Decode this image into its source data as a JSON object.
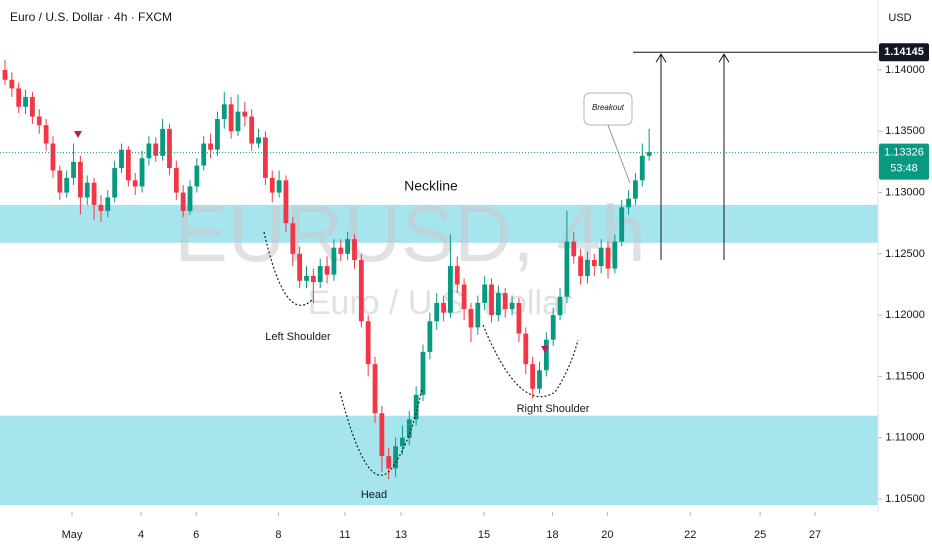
{
  "chart_data": {
    "type": "candlestick",
    "title": "Euro / U.S. Dollar · 4h · FXCM",
    "currency": "USD",
    "watermark": "EURUSD, 4h",
    "watermark_sub": "Euro / U.S. Dollar",
    "annotations": {
      "neckline": "Neckline",
      "left": "Left Shoulder",
      "head": "Head",
      "right": "Right Shoulder",
      "breakout": "Breakout"
    },
    "x": [
      0,
      1,
      2,
      3,
      4,
      5,
      6,
      7,
      8,
      9,
      10,
      11,
      12,
      13,
      14,
      15,
      16,
      17,
      18,
      19,
      20,
      21,
      22,
      23,
      24,
      25,
      26,
      27,
      28,
      29,
      30,
      31,
      32,
      33,
      34,
      35,
      36,
      37,
      38,
      39,
      40,
      41,
      42,
      43,
      44,
      45,
      46,
      47,
      48,
      49,
      50,
      51,
      52,
      53,
      54,
      55,
      56,
      57,
      58,
      59,
      60,
      61,
      62,
      63,
      64,
      65,
      66,
      67,
      68,
      69,
      70,
      71,
      72,
      73,
      74,
      75,
      76,
      77,
      78,
      79,
      80,
      81,
      82,
      83,
      84,
      85,
      86,
      87,
      88,
      89,
      90,
      91,
      92,
      93,
      94
    ],
    "open": [
      1.14,
      1.1392,
      1.1385,
      1.137,
      1.1378,
      1.1362,
      1.1355,
      1.134,
      1.1318,
      1.13,
      1.1312,
      1.1325,
      1.1296,
      1.1308,
      1.129,
      1.1285,
      1.1296,
      1.132,
      1.1335,
      1.131,
      1.1305,
      1.1328,
      1.134,
      1.133,
      1.1352,
      1.132,
      1.13,
      1.1285,
      1.1305,
      1.1322,
      1.134,
      1.1335,
      1.136,
      1.1372,
      1.135,
      1.1366,
      1.1362,
      1.134,
      1.1345,
      1.1312,
      1.13,
      1.131,
      1.1275,
      1.125,
      1.1228,
      1.1232,
      1.1227,
      1.124,
      1.1233,
      1.1255,
      1.125,
      1.1262,
      1.1245,
      1.1195,
      1.116,
      1.112,
      1.1085,
      1.1075,
      1.1093,
      1.11,
      1.1115,
      1.1135,
      1.117,
      1.1195,
      1.121,
      1.1202,
      1.124,
      1.1225,
      1.1205,
      1.119,
      1.121,
      1.1225,
      1.12,
      1.1218,
      1.1205,
      1.121,
      1.1185,
      1.116,
      1.114,
      1.1155,
      1.118,
      1.12,
      1.1215,
      1.126,
      1.1248,
      1.1232,
      1.1245,
      1.124,
      1.1255,
      1.1238,
      1.126,
      1.1288,
      1.1295,
      1.131,
      1.133
    ],
    "high": [
      1.1408,
      1.1398,
      1.139,
      1.1384,
      1.1382,
      1.1368,
      1.136,
      1.1346,
      1.1322,
      1.1318,
      1.134,
      1.133,
      1.1314,
      1.1312,
      1.1298,
      1.1302,
      1.1326,
      1.134,
      1.1338,
      1.1316,
      1.1334,
      1.1346,
      1.1345,
      1.136,
      1.1356,
      1.1326,
      1.1306,
      1.131,
      1.1328,
      1.1346,
      1.1348,
      1.1366,
      1.1382,
      1.1378,
      1.138,
      1.1374,
      1.1368,
      1.1352,
      1.135,
      1.1318,
      1.1318,
      1.1314,
      1.128,
      1.1256,
      1.124,
      1.1238,
      1.1246,
      1.1248,
      1.1262,
      1.1262,
      1.1268,
      1.1266,
      1.125,
      1.12,
      1.1166,
      1.1126,
      1.1092,
      1.11,
      1.111,
      1.1122,
      1.1142,
      1.1176,
      1.1202,
      1.1218,
      1.1216,
      1.1266,
      1.1248,
      1.123,
      1.121,
      1.1216,
      1.1232,
      1.123,
      1.1224,
      1.1222,
      1.1216,
      1.1214,
      1.119,
      1.1166,
      1.1162,
      1.1186,
      1.1206,
      1.1222,
      1.1285,
      1.1268,
      1.1254,
      1.1252,
      1.125,
      1.1262,
      1.126,
      1.1266,
      1.1294,
      1.1302,
      1.1316,
      1.134,
      1.1352
    ],
    "low": [
      1.1388,
      1.1378,
      1.1365,
      1.1364,
      1.1356,
      1.1348,
      1.1334,
      1.1312,
      1.1294,
      1.1296,
      1.1306,
      1.1282,
      1.129,
      1.1278,
      1.1276,
      1.128,
      1.1292,
      1.1316,
      1.1305,
      1.1298,
      1.13,
      1.1322,
      1.1325,
      1.1326,
      1.1314,
      1.1294,
      1.128,
      1.1282,
      1.13,
      1.1318,
      1.1328,
      1.133,
      1.1352,
      1.1344,
      1.1346,
      1.1354,
      1.1334,
      1.1336,
      1.1306,
      1.1292,
      1.1296,
      1.1268,
      1.124,
      1.1222,
      1.1222,
      1.121,
      1.1222,
      1.1226,
      1.1228,
      1.1244,
      1.1245,
      1.1238,
      1.119,
      1.115,
      1.1112,
      1.1072,
      1.1066,
      1.1068,
      1.1086,
      1.1094,
      1.111,
      1.113,
      1.1164,
      1.1188,
      1.1195,
      1.1198,
      1.1218,
      1.1196,
      1.1178,
      1.1184,
      1.1204,
      1.1194,
      1.1195,
      1.1198,
      1.12,
      1.1178,
      1.1152,
      1.1132,
      1.1136,
      1.115,
      1.1175,
      1.1196,
      1.121,
      1.1242,
      1.1225,
      1.1226,
      1.1232,
      1.1234,
      1.123,
      1.1234,
      1.1256,
      1.1282,
      1.129,
      1.1305,
      1.1326
    ],
    "close": [
      1.1392,
      1.1385,
      1.137,
      1.1378,
      1.1362,
      1.1355,
      1.134,
      1.1318,
      1.13,
      1.1312,
      1.1325,
      1.1296,
      1.1308,
      1.129,
      1.1285,
      1.1296,
      1.132,
      1.1335,
      1.131,
      1.1305,
      1.1328,
      1.134,
      1.133,
      1.1352,
      1.132,
      1.13,
      1.1285,
      1.1305,
      1.1322,
      1.134,
      1.1335,
      1.136,
      1.1372,
      1.135,
      1.1366,
      1.1362,
      1.134,
      1.1345,
      1.1312,
      1.13,
      1.131,
      1.1275,
      1.125,
      1.1228,
      1.1232,
      1.1227,
      1.124,
      1.1233,
      1.1255,
      1.125,
      1.1262,
      1.1245,
      1.1195,
      1.116,
      1.112,
      1.1085,
      1.1075,
      1.1093,
      1.11,
      1.1115,
      1.1135,
      1.117,
      1.1195,
      1.121,
      1.1202,
      1.124,
      1.1225,
      1.1205,
      1.119,
      1.121,
      1.1225,
      1.12,
      1.1218,
      1.1205,
      1.121,
      1.1185,
      1.116,
      1.114,
      1.1155,
      1.118,
      1.12,
      1.1215,
      1.126,
      1.1248,
      1.1232,
      1.1245,
      1.124,
      1.1255,
      1.1238,
      1.126,
      1.1288,
      1.1295,
      1.131,
      1.133,
      1.1333
    ],
    "up_color": "#089981",
    "down_color": "#f23645",
    "xlim": [
      -0.73,
      127.4
    ],
    "xticks": [
      {
        "value": 9.78,
        "label": "May"
      },
      {
        "value": 19.85,
        "label": "4"
      },
      {
        "value": 27.9,
        "label": "6"
      },
      {
        "value": 39.9,
        "label": "8"
      },
      {
        "value": 49.6,
        "label": "11"
      },
      {
        "value": 57.8,
        "label": "13"
      },
      {
        "value": 69.9,
        "label": "15"
      },
      {
        "value": 79.9,
        "label": "18"
      },
      {
        "value": 87.9,
        "label": "20"
      },
      {
        "value": 100,
        "label": "22"
      },
      {
        "value": 110.2,
        "label": "25"
      },
      {
        "value": 118.2,
        "label": "27"
      }
    ],
    "ylim": [
      1.10394,
      1.14571
    ],
    "yticks": [
      {
        "value": 1.105,
        "label": "1.10500"
      },
      {
        "value": 1.11,
        "label": "1.11000"
      },
      {
        "value": 1.115,
        "label": "1.11500"
      },
      {
        "value": 1.12,
        "label": "1.12000"
      },
      {
        "value": 1.125,
        "label": "1.12500"
      },
      {
        "value": 1.13,
        "label": "1.13000"
      },
      {
        "value": 1.135,
        "label": "1.13500"
      },
      {
        "value": 1.14,
        "label": "1.14000"
      }
    ],
    "zones": [
      {
        "from": 1.1259,
        "to": 1.129
      },
      {
        "from": 1.1045,
        "to": 1.1118
      }
    ],
    "zone_color": "#a7e5ee",
    "target": 1.14145,
    "last_price": 1.13326,
    "countdown": "53:48"
  }
}
